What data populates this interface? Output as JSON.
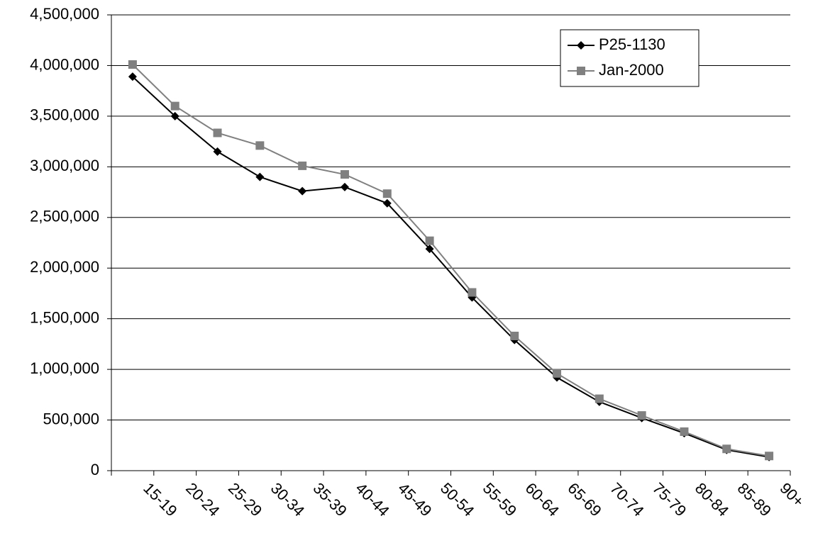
{
  "chart_data": {
    "type": "line",
    "categories": [
      "15-19",
      "20-24",
      "25-29",
      "30-34",
      "35-39",
      "40-44",
      "45-49",
      "50-54",
      "55-59",
      "60-64",
      "65-69",
      "70-74",
      "75-79",
      "80-84",
      "85-89",
      "90+"
    ],
    "series": [
      {
        "name": "P25-1130",
        "color": "#000000",
        "marker": "diamond",
        "values": [
          3890000,
          3500000,
          3150000,
          2900000,
          2760000,
          2800000,
          2640000,
          2190000,
          1710000,
          1290000,
          920000,
          680000,
          520000,
          370000,
          205000,
          135000
        ]
      },
      {
        "name": "Jan-2000",
        "color": "#808080",
        "marker": "square",
        "values": [
          4010000,
          3600000,
          3335000,
          3210000,
          3010000,
          2925000,
          2735000,
          2270000,
          1760000,
          1330000,
          960000,
          710000,
          545000,
          385000,
          215000,
          145000
        ]
      }
    ],
    "ylim": [
      0,
      4500000
    ],
    "yticks": [
      0,
      {
        "value": 500000,
        "label": "500,000"
      },
      {
        "value": 1000000,
        "label": "1,000,000"
      },
      {
        "value": 1500000,
        "label": "1,500,000"
      },
      {
        "value": 2000000,
        "label": "2,000,000"
      },
      {
        "value": 2500000,
        "label": "2,500,000"
      },
      {
        "value": 3000000,
        "label": "3,000,000"
      },
      {
        "value": 3500000,
        "label": "3,500,000"
      },
      {
        "value": 4000000,
        "label": "4,000,000"
      },
      {
        "value": 4500000,
        "label": "4,500,000"
      }
    ],
    "grid": true,
    "legend": "upper-right"
  }
}
